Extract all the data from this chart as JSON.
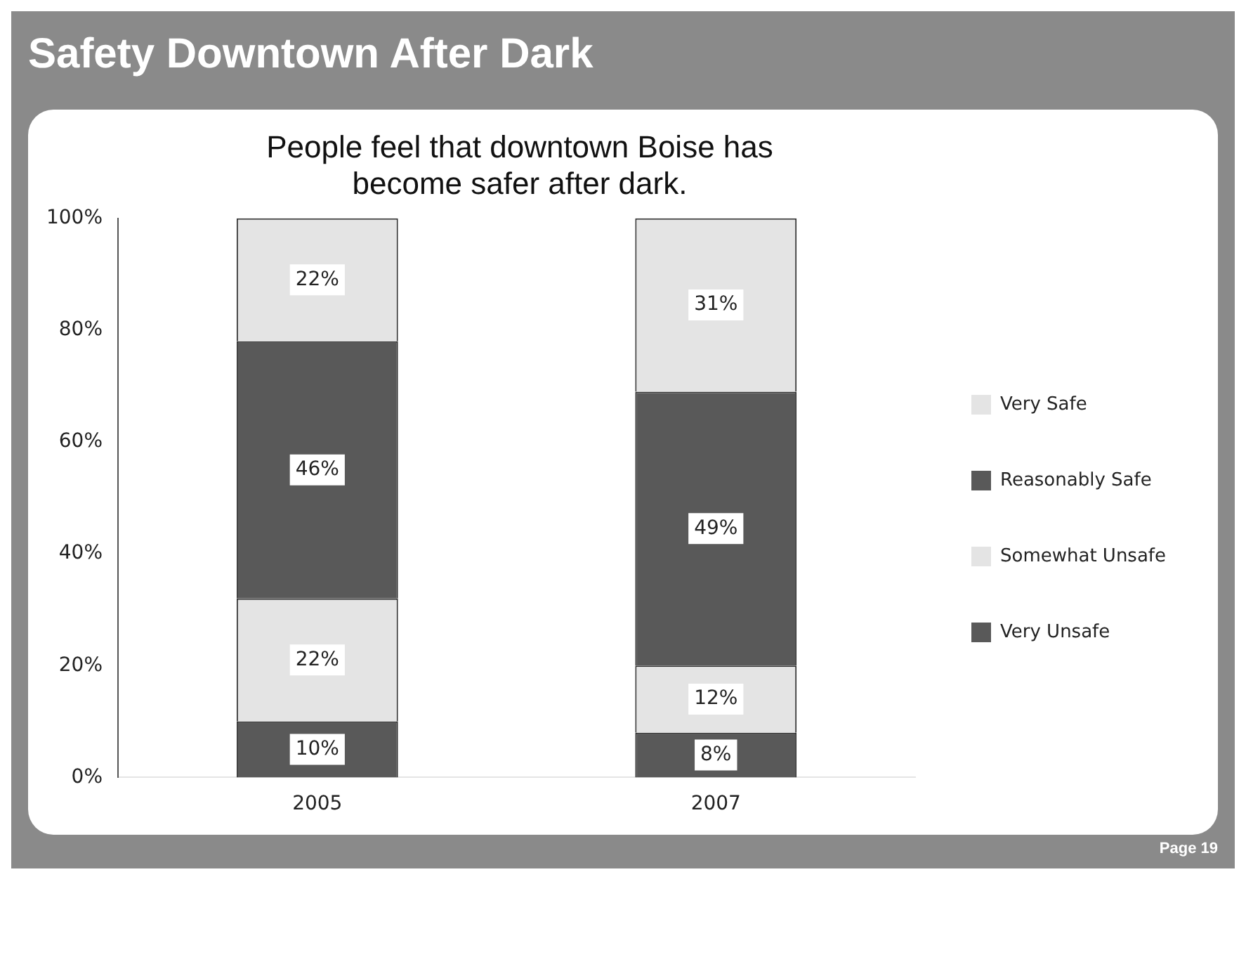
{
  "chart_data": {
    "type": "bar",
    "title": "Safety Downtown After Dark",
    "subtitle": "People feel that downtown Boise has become safer after dark.",
    "categories": [
      "2005",
      "2007"
    ],
    "stacked": true,
    "series": [
      {
        "name": "Very Unsafe",
        "color": "#595959",
        "values": [
          10,
          8
        ]
      },
      {
        "name": "Somewhat Unsafe",
        "color": "#e4e4e4",
        "values": [
          22,
          12
        ]
      },
      {
        "name": "Reasonably Safe",
        "color": "#595959",
        "values": [
          46,
          49
        ]
      },
      {
        "name": "Very Safe",
        "color": "#e4e4e4",
        "values": [
          22,
          31
        ]
      }
    ],
    "ylim": [
      0,
      100
    ],
    "yticks": [
      {
        "value": 0,
        "label": "0%"
      },
      {
        "value": 20,
        "label": "20%"
      },
      {
        "value": 40,
        "label": "40%"
      },
      {
        "value": 60,
        "label": "60%"
      },
      {
        "value": 80,
        "label": "80%"
      },
      {
        "value": 100,
        "label": "100%"
      }
    ],
    "value_labels": [
      [
        "10%",
        "8%"
      ],
      [
        "22%",
        "12%"
      ],
      [
        "46%",
        "49%"
      ],
      [
        "22%",
        "31%"
      ]
    ],
    "legend": "right",
    "annotations": [
      "Page 19"
    ]
  }
}
